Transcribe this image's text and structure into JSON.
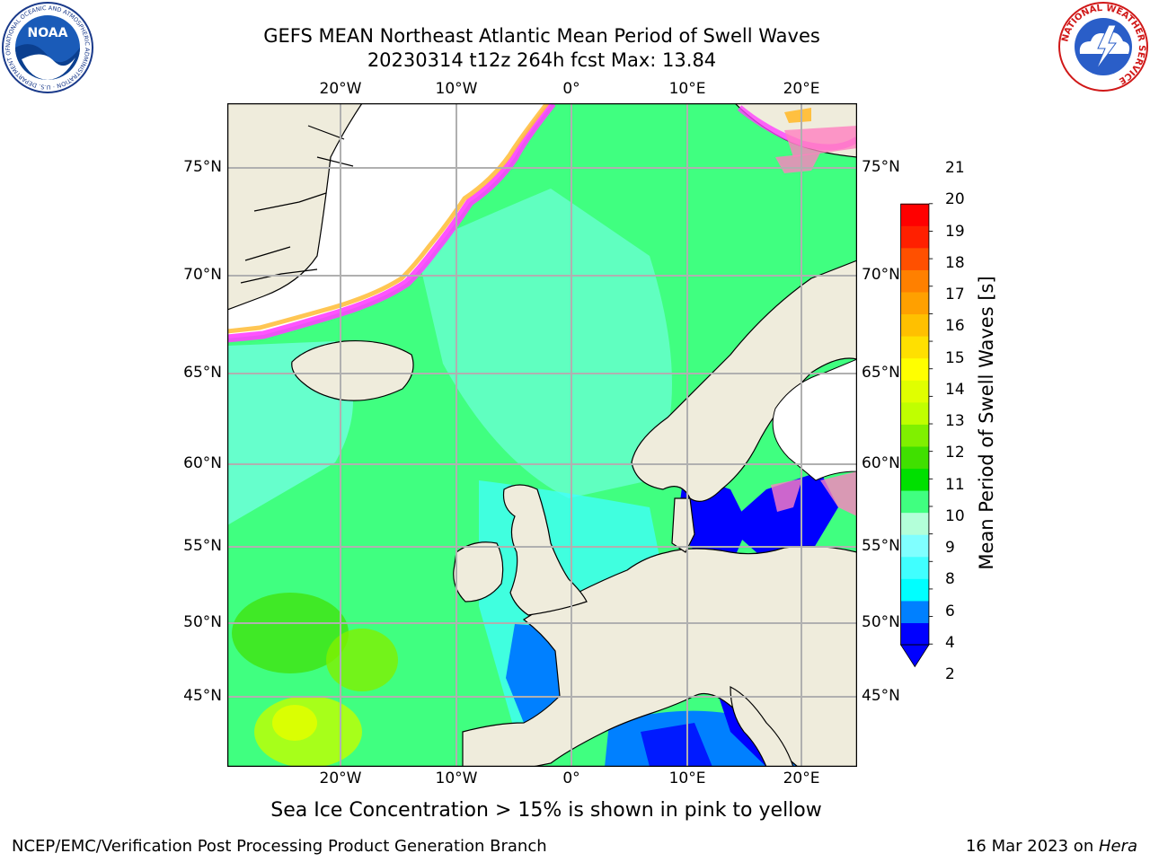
{
  "header": {
    "title_line1": "GEFS MEAN Northeast Atlantic Mean Period of Swell Waves",
    "title_line2": "20230314 t12z 264h fcst   Max: 13.84"
  },
  "map": {
    "lon_labels": [
      "20°W",
      "10°W",
      "0°",
      "10°E",
      "20°E"
    ],
    "lat_labels": [
      "75°N",
      "70°N",
      "65°N",
      "60°N",
      "55°N",
      "50°N",
      "45°N"
    ],
    "lon_range": [
      -30,
      24
    ],
    "lat_range": [
      41,
      78
    ],
    "land_color": "#efecdc",
    "ice_colors": [
      "#ff40ff",
      "#ff80c0",
      "#ffc040",
      "#ffff80"
    ]
  },
  "colorbar": {
    "title": "Mean Period of Swell Waves [s]",
    "ticks": [
      "21",
      "20",
      "19",
      "18",
      "17",
      "16",
      "15",
      "14",
      "13",
      "12",
      "11",
      "10",
      "9",
      "8",
      "6",
      "4",
      "2"
    ],
    "colors": [
      "#0000ff",
      "#0080ff",
      "#00ffff",
      "#40ffff",
      "#80ffff",
      "#b3ffd9",
      "#40ff80",
      "#00e000",
      "#40e000",
      "#80f000",
      "#c0ff00",
      "#e0ff00",
      "#ffff00",
      "#ffe000",
      "#ffc000",
      "#ffa000",
      "#ff8000",
      "#ff5000",
      "#ff2000",
      "#ff0000"
    ]
  },
  "caption": "Sea Ice Concentration > 15% is shown in pink to yellow",
  "footer": {
    "left": "NCEP/EMC/Verification Post Processing Product Generation Branch",
    "right_prefix": "16 Mar 2023 on ",
    "right_host": "Hera"
  },
  "logos": {
    "noaa": "NOAA",
    "noaa_ring": "NATIONAL OCEANIC AND ATMOSPHERIC ADMINISTRATION · U.S. DEPARTMENT OF COMMERCE",
    "nws_ring": "NATIONAL WEATHER SERVICE"
  }
}
